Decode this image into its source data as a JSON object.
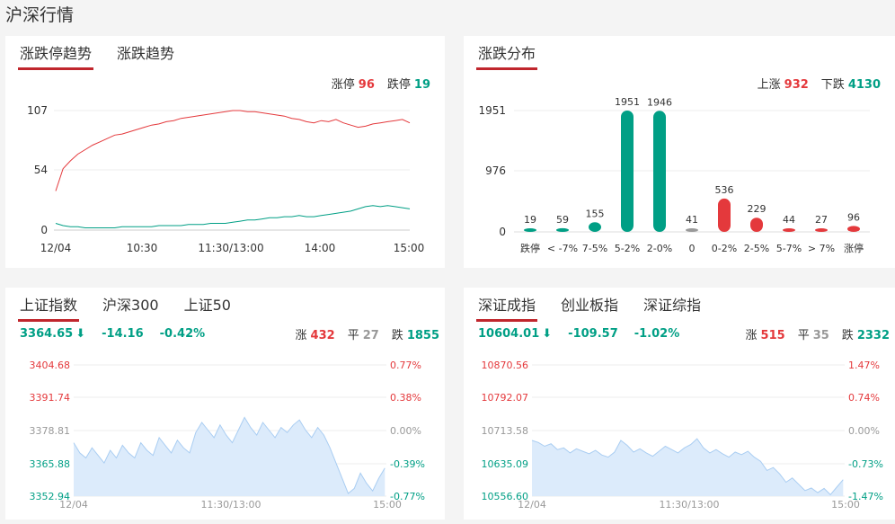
{
  "page": {
    "title": "沪深行情"
  },
  "limit_card": {
    "tabs": [
      "涨跌停趋势",
      "涨跌趋势"
    ],
    "limit_up": {
      "label": "涨停",
      "value": "96"
    },
    "limit_down": {
      "label": "跌停",
      "value": "19"
    },
    "y_ticks": [
      "107",
      "54",
      "0"
    ],
    "x_ticks": [
      "12/04",
      "10:30",
      "11:30/13:00",
      "14:00",
      "15:00"
    ]
  },
  "dist_card": {
    "tab": "涨跌分布",
    "rise": {
      "label": "上涨",
      "value": "932"
    },
    "fall": {
      "label": "下跌",
      "value": "4130"
    },
    "y_ticks": [
      "1951",
      "976",
      "0"
    ]
  },
  "sh_card": {
    "tabs": [
      "上证指数",
      "沪深300",
      "上证50"
    ],
    "price": "3364.65",
    "arrow": "⬇",
    "change": "-14.16",
    "pct": "-0.42%",
    "up": {
      "label": "涨",
      "value": "432"
    },
    "flat": {
      "label": "平",
      "value": "27"
    },
    "down": {
      "label": "跌",
      "value": "1855"
    },
    "left_ticks": [
      "3404.68",
      "3391.74",
      "3378.81",
      "3365.88",
      "3352.94"
    ],
    "right_ticks": [
      "0.77%",
      "0.38%",
      "0.00%",
      "-0.39%",
      "-0.77%"
    ],
    "x_ticks": [
      "12/04",
      "11:30/13:00",
      "15:00"
    ]
  },
  "sz_card": {
    "tabs": [
      "深证成指",
      "创业板指",
      "深证综指"
    ],
    "price": "10604.01",
    "arrow": "⬇",
    "change": "-109.57",
    "pct": "-1.02%",
    "up": {
      "label": "涨",
      "value": "515"
    },
    "flat": {
      "label": "平",
      "value": "35"
    },
    "down": {
      "label": "跌",
      "value": "2332"
    },
    "left_ticks": [
      "10870.56",
      "10792.07",
      "10713.58",
      "10635.09",
      "10556.60"
    ],
    "right_ticks": [
      "1.47%",
      "0.74%",
      "0.00%",
      "-0.73%",
      "-1.47%"
    ],
    "x_ticks": [
      "12/04",
      "11:30/13:00",
      "15:00"
    ]
  },
  "colors": {
    "red": "#e4393c",
    "green": "#009f85",
    "gray": "#999999",
    "area": "#dcebfb",
    "area_line": "#a9cdf2"
  },
  "chart_data": [
    {
      "type": "line",
      "title": "涨跌停趋势",
      "ylim": [
        0,
        107
      ],
      "series": [
        {
          "name": "涨停",
          "values": [
            35,
            55,
            62,
            68,
            72,
            76,
            79,
            82,
            85,
            86,
            88,
            90,
            92,
            94,
            95,
            97,
            98,
            100,
            101,
            102,
            103,
            104,
            105,
            106,
            107,
            107,
            106,
            106,
            105,
            104,
            103,
            102,
            100,
            99,
            97,
            96,
            98,
            97,
            99,
            96,
            94,
            92,
            93,
            95,
            96,
            97,
            98,
            99,
            96
          ]
        },
        {
          "name": "跌停",
          "values": [
            6,
            4,
            3,
            3,
            2,
            2,
            2,
            2,
            2,
            3,
            3,
            3,
            3,
            3,
            4,
            4,
            4,
            4,
            5,
            5,
            5,
            6,
            6,
            6,
            7,
            8,
            9,
            9,
            10,
            11,
            11,
            12,
            12,
            13,
            12,
            12,
            13,
            14,
            15,
            16,
            17,
            19,
            21,
            22,
            21,
            22,
            21,
            20,
            19
          ]
        }
      ]
    },
    {
      "type": "bar",
      "title": "涨跌分布",
      "categories": [
        "跌停",
        "< -7%",
        "7-5%",
        "5-2%",
        "2-0%",
        "0",
        "0-2%",
        "2-5%",
        "5-7%",
        "> 7%",
        "涨停"
      ],
      "values": [
        19,
        59,
        155,
        1951,
        1946,
        41,
        536,
        229,
        44,
        27,
        96
      ],
      "colors": [
        "#009f85",
        "#009f85",
        "#009f85",
        "#009f85",
        "#009f85",
        "#999999",
        "#e4393c",
        "#e4393c",
        "#e4393c",
        "#e4393c",
        "#e4393c"
      ],
      "ylim": [
        0,
        1951
      ]
    },
    {
      "type": "area",
      "title": "上证指数",
      "ylim": [
        3352.94,
        3404.68
      ],
      "values": [
        3374,
        3370,
        3368,
        3372,
        3369,
        3366,
        3371,
        3368,
        3373,
        3370,
        3368,
        3374,
        3371,
        3369,
        3376,
        3373,
        3370,
        3375,
        3372,
        3370,
        3378,
        3382,
        3379,
        3376,
        3381,
        3377,
        3374,
        3379,
        3384,
        3380,
        3377,
        3382,
        3379,
        3376,
        3380,
        3378,
        3381,
        3383,
        3379,
        3376,
        3380,
        3377,
        3372,
        3366,
        3360,
        3354,
        3356,
        3362,
        3358,
        3355,
        3360,
        3364
      ]
    },
    {
      "type": "area",
      "title": "深证成指",
      "ylim": [
        10556.6,
        10870.56
      ],
      "values": [
        10690,
        10685,
        10676,
        10682,
        10668,
        10672,
        10660,
        10670,
        10664,
        10658,
        10666,
        10655,
        10650,
        10662,
        10690,
        10678,
        10662,
        10670,
        10660,
        10652,
        10664,
        10676,
        10668,
        10660,
        10672,
        10680,
        10694,
        10672,
        10660,
        10668,
        10658,
        10650,
        10662,
        10656,
        10664,
        10650,
        10640,
        10618,
        10625,
        10610,
        10590,
        10600,
        10585,
        10570,
        10576,
        10565,
        10575,
        10560,
        10578,
        10596
      ]
    }
  ]
}
